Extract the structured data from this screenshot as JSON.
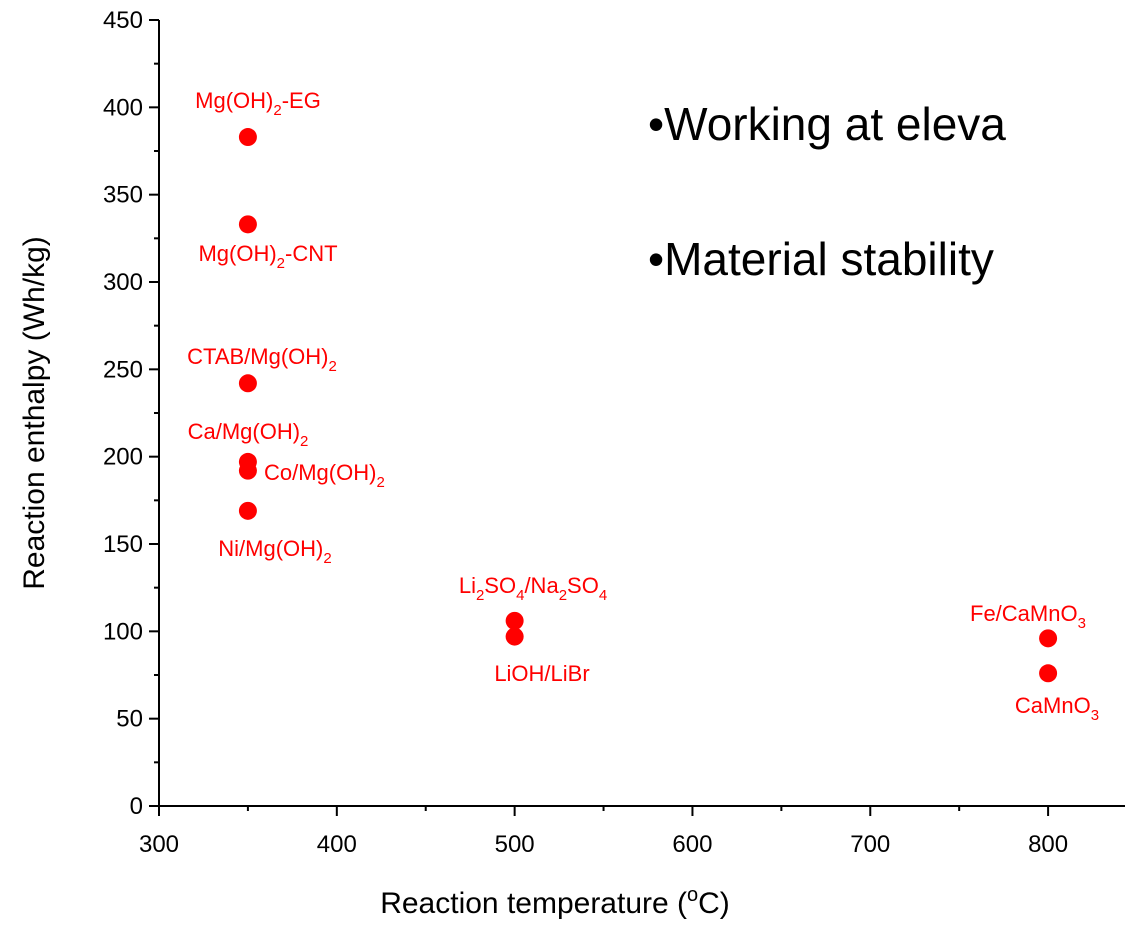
{
  "chart_data": {
    "type": "scatter",
    "xlabel": {
      "pre": "Reaction temperature (",
      "sup": "o",
      "post": "C)"
    },
    "ylabel": "Reaction enthalpy (Wh/kg)",
    "xlim": [
      300,
      850
    ],
    "ylim": [
      0,
      450
    ],
    "x_ticks": [
      300,
      400,
      500,
      600,
      700,
      800
    ],
    "y_ticks": [
      0,
      50,
      100,
      150,
      200,
      250,
      300,
      350,
      400,
      450
    ],
    "marker_color": "#ff0000",
    "points": [
      {
        "x": 350,
        "y": 383,
        "label": [
          {
            "t": "Mg(OH)"
          },
          {
            "t": "2",
            "s": "sub"
          },
          {
            "t": "-EG"
          }
        ]
      },
      {
        "x": 350,
        "y": 333,
        "label": [
          {
            "t": "Mg(OH)"
          },
          {
            "t": "2",
            "s": "sub"
          },
          {
            "t": "-CNT"
          }
        ]
      },
      {
        "x": 350,
        "y": 242,
        "label": [
          {
            "t": "CTAB/Mg(OH)"
          },
          {
            "t": "2",
            "s": "sub"
          }
        ]
      },
      {
        "x": 350,
        "y": 197,
        "label": [
          {
            "t": "Ca/Mg(OH)"
          },
          {
            "t": "2",
            "s": "sub"
          }
        ]
      },
      {
        "x": 350,
        "y": 192,
        "label": [
          {
            "t": "Co/Mg(OH)"
          },
          {
            "t": "2",
            "s": "sub"
          }
        ]
      },
      {
        "x": 350,
        "y": 169,
        "label": [
          {
            "t": "Ni/Mg(OH)"
          },
          {
            "t": "2",
            "s": "sub"
          }
        ]
      },
      {
        "x": 500,
        "y": 106,
        "label": [
          {
            "t": "Li"
          },
          {
            "t": "2",
            "s": "sub"
          },
          {
            "t": "SO"
          },
          {
            "t": "4",
            "s": "sub"
          },
          {
            "t": "/Na"
          },
          {
            "t": "2",
            "s": "sub"
          },
          {
            "t": "SO"
          },
          {
            "t": "4",
            "s": "sub"
          }
        ]
      },
      {
        "x": 500,
        "y": 97,
        "label": [
          {
            "t": "LiOH/LiBr"
          }
        ]
      },
      {
        "x": 800,
        "y": 96,
        "label": [
          {
            "t": "Fe/CaMnO"
          },
          {
            "t": "3",
            "s": "sub"
          }
        ]
      },
      {
        "x": 800,
        "y": 76,
        "label": [
          {
            "t": "CaMnO"
          },
          {
            "t": "3",
            "s": "sub"
          }
        ]
      }
    ]
  },
  "annotations": {
    "bullets": [
      "•Working at eleva",
      "•Material stability"
    ]
  }
}
